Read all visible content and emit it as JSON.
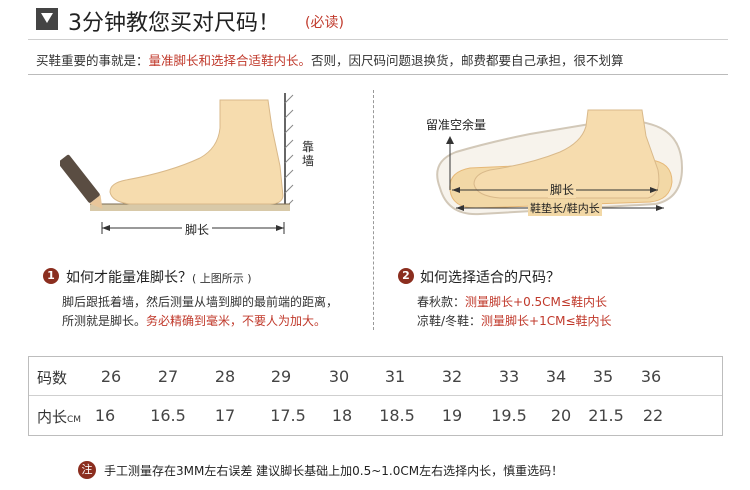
{
  "header": {
    "title": "3分钟教您买对尺码！",
    "note": "(必读)"
  },
  "intro": {
    "prefix": "买鞋重要的事就是：",
    "highlight": "量准脚长和选择合适鞋内长。",
    "suffix": "否则，因尺码问题退换货，邮费都要自己承担，很不划算"
  },
  "figure_left": {
    "wall_label": "靠墙",
    "length_label": "脚长"
  },
  "figure_right": {
    "space_label": "留准空余量",
    "length_label": "脚长",
    "insole_label": "鞋垫长/鞋内长"
  },
  "step1": {
    "number": "1",
    "title": "如何才能量准脚长？",
    "subtitle": "( 上图所示 )",
    "line1": "脚后跟抵着墙，然后测量从墙到脚的最前端的距离，",
    "line2_prefix": "所测就是脚长。",
    "line2_highlight": "务必精确到毫米，不要人为加大。"
  },
  "step2": {
    "number": "2",
    "title": "如何选择适合的尺码？",
    "line1_prefix": "春秋款：",
    "line1_highlight": "测量脚长+0.5CM≤鞋内长",
    "line2_prefix": "凉鞋/冬鞋：",
    "line2_highlight": "测量脚长+1CM≤鞋内长"
  },
  "size_table": {
    "row1_label": "码数",
    "row2_label": "内长",
    "row2_unit": "CM",
    "sizes": [
      "26",
      "27",
      "28",
      "29",
      "30",
      "31",
      "32",
      "33",
      "34",
      "35",
      "36"
    ],
    "lengths": [
      "16",
      "16.5",
      "17",
      "17.5",
      "18",
      "18.5",
      "19",
      "19.5",
      "20",
      "21.5",
      "22"
    ]
  },
  "note": {
    "badge": "注",
    "text": "手工测量存在3MM左右误差 建议脚长基础上加0.5~1.0CM左右选择内长，慎重选码！"
  },
  "colors": {
    "accent_red": "#c0392b",
    "badge_brown": "#8b2e1f",
    "foot_fill": "#f6dcae"
  }
}
